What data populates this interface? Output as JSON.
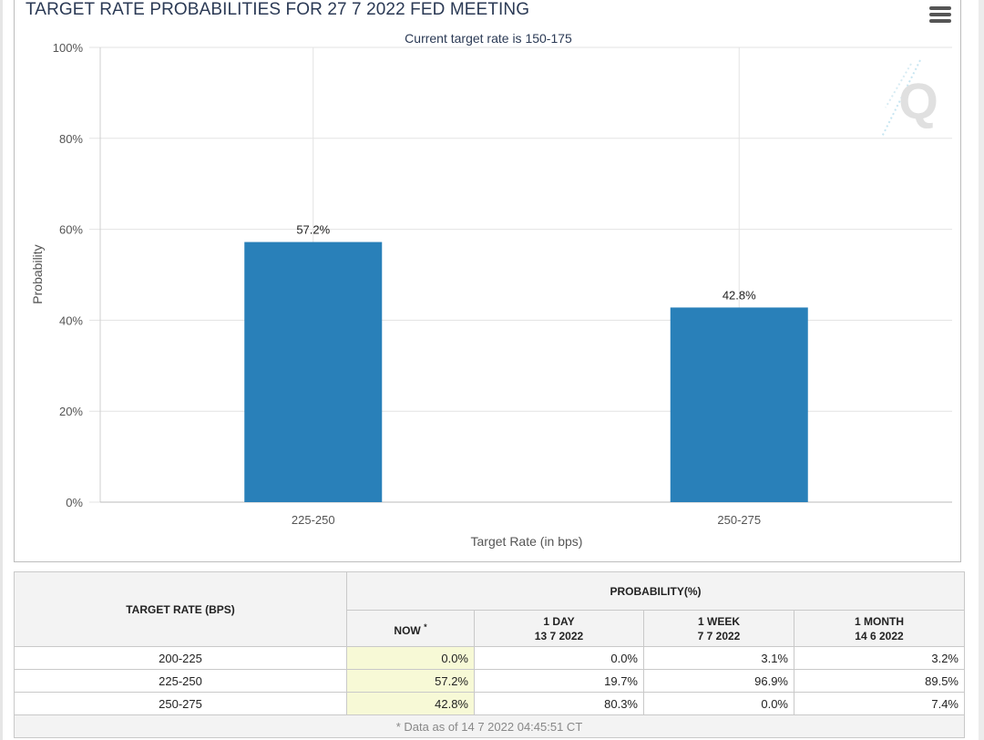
{
  "chart_title": "TARGET RATE PROBABILITIES FOR 27 7 2022 FED MEETING",
  "chart_data": {
    "type": "bar",
    "title": "TARGET RATE PROBABILITIES FOR 27 7 2022 FED MEETING",
    "subtitle": "Current target rate is 150-175",
    "xlabel": "Target Rate (in bps)",
    "ylabel": "Probability",
    "categories": [
      "225-250",
      "250-275"
    ],
    "values": [
      57.2,
      42.8
    ],
    "data_labels": [
      "57.2%",
      "42.8%"
    ],
    "ylim": [
      0,
      100
    ],
    "yticks": [
      0,
      20,
      40,
      60,
      80,
      100
    ],
    "ytick_labels": [
      "0%",
      "20%",
      "40%",
      "60%",
      "80%",
      "100%"
    ],
    "bar_color": "#2980b9",
    "grid": true
  },
  "table": {
    "col_target_header": "TARGET RATE (BPS)",
    "group_header": "PROBABILITY(%)",
    "columns": [
      {
        "label": "NOW",
        "date": "",
        "star": "*"
      },
      {
        "label": "1 DAY",
        "date": "13 7 2022"
      },
      {
        "label": "1 WEEK",
        "date": "7 7 2022"
      },
      {
        "label": "1 MONTH",
        "date": "14 6 2022"
      }
    ],
    "rows": [
      {
        "rate": "200-225",
        "now": "0.0%",
        "day": "0.0%",
        "week": "3.1%",
        "month": "3.2%"
      },
      {
        "rate": "225-250",
        "now": "57.2%",
        "day": "19.7%",
        "week": "96.9%",
        "month": "89.5%"
      },
      {
        "rate": "250-275",
        "now": "42.8%",
        "day": "80.3%",
        "week": "0.0%",
        "month": "7.4%"
      }
    ],
    "footnote": "* Data as of 14 7 2022 04:45:51 CT"
  }
}
